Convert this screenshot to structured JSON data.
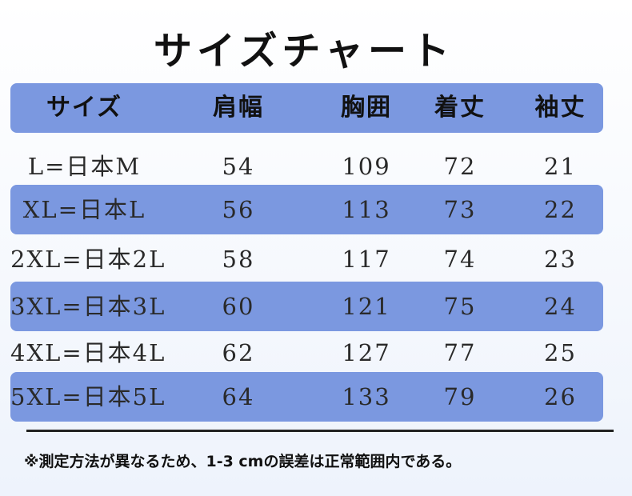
{
  "title": "サイズチャート",
  "header": {
    "size": "サイズ",
    "shoulder": "肩幅",
    "chest": "胸囲",
    "length": "着丈",
    "sleeve": "袖丈"
  },
  "rows": [
    {
      "size": "L=日本M",
      "shoulder": "54",
      "chest": "109",
      "length": "72",
      "sleeve": "21"
    },
    {
      "size": "XL=日本L",
      "shoulder": "56",
      "chest": "113",
      "length": "73",
      "sleeve": "22"
    },
    {
      "size": "2XL=日本2L",
      "shoulder": "58",
      "chest": "117",
      "length": "74",
      "sleeve": "23"
    },
    {
      "size": "3XL=日本3L",
      "shoulder": "60",
      "chest": "121",
      "length": "75",
      "sleeve": "24"
    },
    {
      "size": "4XL=日本4L",
      "shoulder": "62",
      "chest": "127",
      "length": "77",
      "sleeve": "25"
    },
    {
      "size": "5XL=日本5L",
      "shoulder": "64",
      "chest": "133",
      "length": "79",
      "sleeve": "26"
    }
  ],
  "note": "※測定方法が異なるため、1-3 cmの誤差は正常範囲内である。",
  "colors": {
    "band": "#7b98e0",
    "background": "#ffffff"
  }
}
